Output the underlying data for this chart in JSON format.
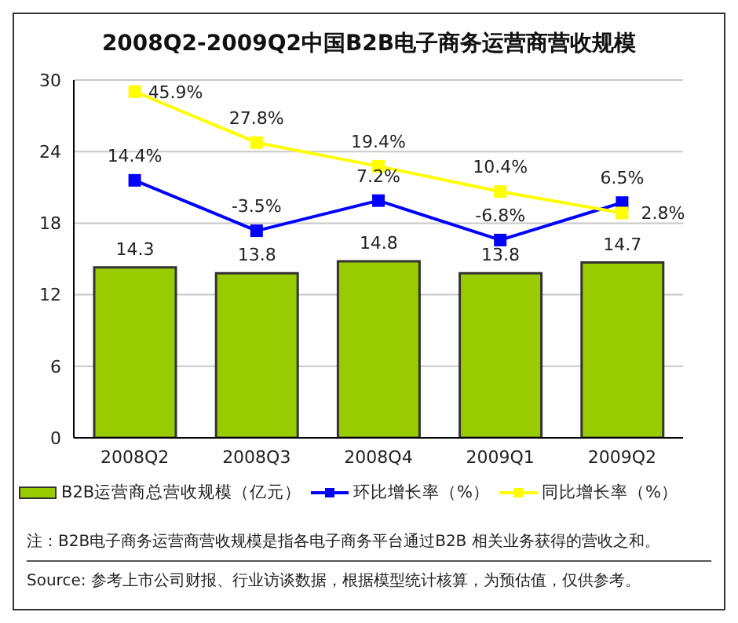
{
  "chart_data": {
    "type": "bar",
    "title": "2008Q2-2009Q2中国B2B电子商务运营商营收规模",
    "categories": [
      "2008Q2",
      "2008Q3",
      "2008Q4",
      "2009Q1",
      "2009Q2"
    ],
    "series": [
      {
        "name": "B2B运营商总营收规模（亿元）",
        "color": "#99cc00",
        "values": [
          14.3,
          13.8,
          14.8,
          13.8,
          14.7
        ],
        "value_labels": [
          "14.3",
          "13.8",
          "14.8",
          "13.8",
          "14.7"
        ]
      },
      {
        "name": "环比增长率（%）",
        "type": "line",
        "axis": "y2",
        "color": "#0000ff",
        "values": [
          14.4,
          -3.5,
          7.2,
          -6.8,
          6.5
        ],
        "value_labels": [
          "14.4%",
          "-3.5%",
          "7.2%",
          "-6.8%",
          "6.5%"
        ]
      },
      {
        "name": "同比增长率（%）",
        "type": "line",
        "axis": "y2",
        "color": "#ffff00",
        "values": [
          45.9,
          27.8,
          19.4,
          10.4,
          2.8
        ],
        "value_labels": [
          "45.9%",
          "27.8%",
          "19.4%",
          "10.4%",
          "2.8%"
        ]
      }
    ],
    "ylim": [
      0,
      30
    ],
    "yticks": [
      0,
      6,
      12,
      18,
      24,
      30
    ],
    "y2lim": [
      -77,
      50
    ],
    "grid": "y",
    "legend": "bottom",
    "marker": "square",
    "line_style": "solid",
    "annotations": [
      "注：B2B电子商务运营商营收规模是指各电子商务平台通过B2B 相关业务获得的营收之和。",
      "Source: 参考上市公司财报、行业访谈数据，根据模型统计核算，为预估值，仅供参考。"
    ]
  }
}
